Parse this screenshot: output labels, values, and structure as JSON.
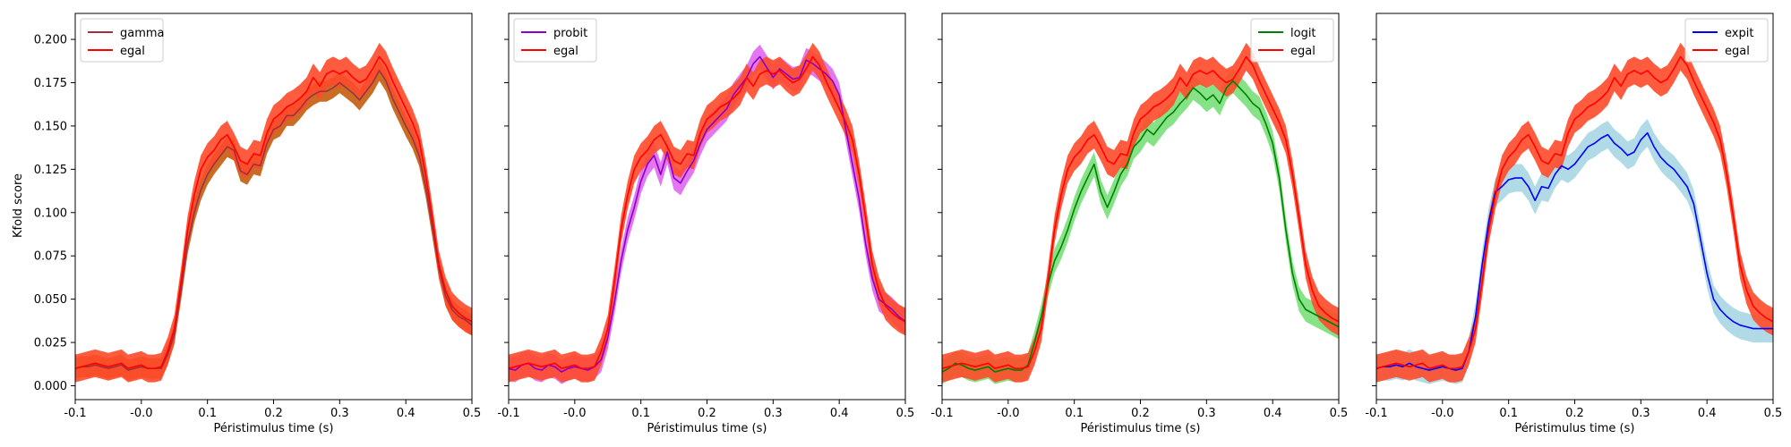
{
  "figure": {
    "ylabel": "Kfold score",
    "xlabel": "Péristimulus time (s)"
  },
  "chart_data": [
    {
      "type": "line",
      "title": "",
      "xlabel": "Péristimulus time (s)",
      "ylabel": "Kfold score",
      "xlim": [
        -0.1,
        0.5
      ],
      "ylim": [
        -0.008,
        0.215
      ],
      "xticks": [
        -0.1,
        0.0,
        0.1,
        0.2,
        0.3,
        0.4,
        0.5
      ],
      "xtick_labels": [
        "-0.1",
        "-0.0",
        "0.1",
        "0.2",
        "0.3",
        "0.4",
        "0.5"
      ],
      "yticks": [
        0.0,
        0.025,
        0.05,
        0.075,
        0.1,
        0.125,
        0.15,
        0.175,
        0.2
      ],
      "ytick_labels": [
        "0.000",
        "0.025",
        "0.050",
        "0.075",
        "0.100",
        "0.125",
        "0.150",
        "0.175",
        "0.200"
      ],
      "grid": false,
      "legend_position": "upper-left",
      "x": [
        -0.1,
        -0.09,
        -0.08,
        -0.07,
        -0.06,
        -0.05,
        -0.04,
        -0.03,
        -0.02,
        -0.01,
        0.0,
        0.01,
        0.02,
        0.03,
        0.04,
        0.05,
        0.06,
        0.07,
        0.08,
        0.09,
        0.1,
        0.11,
        0.12,
        0.13,
        0.14,
        0.15,
        0.16,
        0.17,
        0.18,
        0.19,
        0.2,
        0.21,
        0.22,
        0.23,
        0.24,
        0.25,
        0.26,
        0.27,
        0.28,
        0.29,
        0.3,
        0.31,
        0.32,
        0.33,
        0.34,
        0.35,
        0.36,
        0.37,
        0.38,
        0.39,
        0.4,
        0.41,
        0.42,
        0.43,
        0.44,
        0.45,
        0.46,
        0.47,
        0.48,
        0.49,
        0.5
      ],
      "series": [
        {
          "name": "gamma",
          "color": "#a03040",
          "band_color": "#c86418",
          "band_halfwidth": 0.006,
          "values": [
            0.01,
            0.011,
            0.011,
            0.012,
            0.011,
            0.01,
            0.011,
            0.012,
            0.009,
            0.01,
            0.011,
            0.01,
            0.01,
            0.01,
            0.018,
            0.03,
            0.055,
            0.082,
            0.1,
            0.113,
            0.122,
            0.128,
            0.133,
            0.138,
            0.136,
            0.124,
            0.122,
            0.128,
            0.127,
            0.14,
            0.148,
            0.15,
            0.156,
            0.156,
            0.16,
            0.165,
            0.168,
            0.17,
            0.17,
            0.172,
            0.175,
            0.172,
            0.169,
            0.165,
            0.17,
            0.175,
            0.182,
            0.176,
            0.166,
            0.158,
            0.15,
            0.143,
            0.133,
            0.115,
            0.092,
            0.068,
            0.052,
            0.044,
            0.04,
            0.038,
            0.035
          ]
        },
        {
          "name": "egal",
          "color": "#ff0000",
          "band_color": "#ff4a2a",
          "band_halfwidth": 0.008,
          "values": [
            0.01,
            0.011,
            0.012,
            0.013,
            0.012,
            0.011,
            0.012,
            0.013,
            0.01,
            0.011,
            0.012,
            0.01,
            0.01,
            0.011,
            0.02,
            0.033,
            0.06,
            0.09,
            0.11,
            0.125,
            0.132,
            0.136,
            0.142,
            0.145,
            0.138,
            0.13,
            0.128,
            0.134,
            0.133,
            0.146,
            0.154,
            0.157,
            0.161,
            0.163,
            0.166,
            0.17,
            0.178,
            0.173,
            0.18,
            0.182,
            0.18,
            0.182,
            0.178,
            0.175,
            0.177,
            0.183,
            0.19,
            0.185,
            0.176,
            0.168,
            0.16,
            0.152,
            0.142,
            0.122,
            0.097,
            0.07,
            0.055,
            0.046,
            0.042,
            0.039,
            0.037
          ]
        }
      ]
    },
    {
      "type": "line",
      "title": "",
      "xlabel": "Péristimulus time (s)",
      "ylabel": "",
      "xlim": [
        -0.1,
        0.5
      ],
      "ylim": [
        -0.008,
        0.215
      ],
      "xticks": [
        -0.1,
        0.0,
        0.1,
        0.2,
        0.3,
        0.4,
        0.5
      ],
      "xtick_labels": [
        "-0.1",
        "-0.0",
        "0.1",
        "0.2",
        "0.3",
        "0.4",
        "0.5"
      ],
      "yticks": [
        0.0,
        0.025,
        0.05,
        0.075,
        0.1,
        0.125,
        0.15,
        0.175,
        0.2
      ],
      "ytick_labels": [],
      "grid": false,
      "legend_position": "upper-left",
      "x": [
        -0.1,
        -0.09,
        -0.08,
        -0.07,
        -0.06,
        -0.05,
        -0.04,
        -0.03,
        -0.02,
        -0.01,
        0.0,
        0.01,
        0.02,
        0.03,
        0.04,
        0.05,
        0.06,
        0.07,
        0.08,
        0.09,
        0.1,
        0.11,
        0.12,
        0.13,
        0.14,
        0.15,
        0.16,
        0.17,
        0.18,
        0.19,
        0.2,
        0.21,
        0.22,
        0.23,
        0.24,
        0.25,
        0.26,
        0.27,
        0.28,
        0.29,
        0.3,
        0.31,
        0.32,
        0.33,
        0.34,
        0.35,
        0.36,
        0.37,
        0.38,
        0.39,
        0.4,
        0.41,
        0.42,
        0.43,
        0.44,
        0.45,
        0.46,
        0.47,
        0.48,
        0.49,
        0.5
      ],
      "series": [
        {
          "name": "probit",
          "color": "#8b00c8",
          "band_color": "#e070f0",
          "band_halfwidth": 0.007,
          "values": [
            0.01,
            0.009,
            0.012,
            0.013,
            0.01,
            0.009,
            0.012,
            0.011,
            0.008,
            0.01,
            0.011,
            0.01,
            0.009,
            0.011,
            0.015,
            0.028,
            0.048,
            0.072,
            0.09,
            0.103,
            0.118,
            0.128,
            0.133,
            0.122,
            0.135,
            0.12,
            0.117,
            0.124,
            0.13,
            0.14,
            0.148,
            0.152,
            0.156,
            0.16,
            0.168,
            0.173,
            0.178,
            0.186,
            0.19,
            0.184,
            0.178,
            0.183,
            0.18,
            0.177,
            0.178,
            0.188,
            0.186,
            0.183,
            0.18,
            0.176,
            0.168,
            0.148,
            0.128,
            0.108,
            0.082,
            0.062,
            0.05,
            0.047,
            0.044,
            0.04,
            0.037
          ]
        },
        {
          "name": "egal",
          "color": "#ff0000",
          "band_color": "#ff4a2a",
          "band_halfwidth": 0.008,
          "values": [
            0.01,
            0.011,
            0.012,
            0.013,
            0.012,
            0.011,
            0.012,
            0.013,
            0.01,
            0.011,
            0.012,
            0.01,
            0.01,
            0.011,
            0.02,
            0.033,
            0.06,
            0.09,
            0.11,
            0.125,
            0.132,
            0.136,
            0.142,
            0.145,
            0.138,
            0.13,
            0.128,
            0.134,
            0.133,
            0.146,
            0.154,
            0.157,
            0.161,
            0.163,
            0.166,
            0.17,
            0.178,
            0.173,
            0.18,
            0.182,
            0.18,
            0.182,
            0.178,
            0.175,
            0.177,
            0.183,
            0.19,
            0.185,
            0.176,
            0.168,
            0.16,
            0.152,
            0.142,
            0.122,
            0.097,
            0.07,
            0.055,
            0.046,
            0.042,
            0.039,
            0.037
          ]
        }
      ]
    },
    {
      "type": "line",
      "title": "",
      "xlabel": "Péristimulus time (s)",
      "ylabel": "",
      "xlim": [
        -0.1,
        0.5
      ],
      "ylim": [
        -0.008,
        0.215
      ],
      "xticks": [
        -0.1,
        0.0,
        0.1,
        0.2,
        0.3,
        0.4,
        0.5
      ],
      "xtick_labels": [
        "-0.1",
        "-0.0",
        "0.1",
        "0.2",
        "0.3",
        "0.4",
        "0.5"
      ],
      "yticks": [
        0.0,
        0.025,
        0.05,
        0.075,
        0.1,
        0.125,
        0.15,
        0.175,
        0.2
      ],
      "ytick_labels": [],
      "grid": false,
      "legend_position": "upper-right",
      "x": [
        -0.1,
        -0.09,
        -0.08,
        -0.07,
        -0.06,
        -0.05,
        -0.04,
        -0.03,
        -0.02,
        -0.01,
        0.0,
        0.01,
        0.02,
        0.03,
        0.04,
        0.05,
        0.06,
        0.07,
        0.08,
        0.09,
        0.1,
        0.11,
        0.12,
        0.13,
        0.14,
        0.15,
        0.16,
        0.17,
        0.18,
        0.19,
        0.2,
        0.21,
        0.22,
        0.23,
        0.24,
        0.25,
        0.26,
        0.27,
        0.28,
        0.29,
        0.3,
        0.31,
        0.32,
        0.33,
        0.34,
        0.35,
        0.36,
        0.37,
        0.38,
        0.39,
        0.4,
        0.41,
        0.42,
        0.43,
        0.44,
        0.45,
        0.46,
        0.47,
        0.48,
        0.49,
        0.5
      ],
      "series": [
        {
          "name": "logit",
          "color": "#008000",
          "band_color": "#80e080",
          "band_halfwidth": 0.007,
          "values": [
            0.008,
            0.01,
            0.013,
            0.012,
            0.01,
            0.009,
            0.01,
            0.011,
            0.008,
            0.009,
            0.01,
            0.009,
            0.009,
            0.012,
            0.025,
            0.04,
            0.058,
            0.072,
            0.08,
            0.09,
            0.102,
            0.112,
            0.12,
            0.128,
            0.112,
            0.103,
            0.112,
            0.122,
            0.128,
            0.138,
            0.142,
            0.148,
            0.145,
            0.15,
            0.155,
            0.158,
            0.163,
            0.167,
            0.172,
            0.169,
            0.165,
            0.168,
            0.163,
            0.172,
            0.176,
            0.172,
            0.168,
            0.163,
            0.16,
            0.151,
            0.14,
            0.12,
            0.09,
            0.065,
            0.05,
            0.044,
            0.042,
            0.04,
            0.038,
            0.036,
            0.034
          ]
        },
        {
          "name": "egal",
          "color": "#ff0000",
          "band_color": "#ff4a2a",
          "band_halfwidth": 0.008,
          "values": [
            0.01,
            0.011,
            0.012,
            0.013,
            0.012,
            0.011,
            0.012,
            0.013,
            0.01,
            0.011,
            0.012,
            0.01,
            0.01,
            0.011,
            0.02,
            0.033,
            0.06,
            0.09,
            0.11,
            0.125,
            0.132,
            0.136,
            0.142,
            0.145,
            0.138,
            0.13,
            0.128,
            0.134,
            0.133,
            0.146,
            0.154,
            0.157,
            0.161,
            0.163,
            0.166,
            0.17,
            0.178,
            0.173,
            0.18,
            0.182,
            0.18,
            0.182,
            0.178,
            0.175,
            0.177,
            0.183,
            0.19,
            0.185,
            0.176,
            0.168,
            0.16,
            0.152,
            0.142,
            0.122,
            0.097,
            0.07,
            0.055,
            0.046,
            0.042,
            0.039,
            0.037
          ]
        }
      ]
    },
    {
      "type": "line",
      "title": "",
      "xlabel": "Péristimulus time (s)",
      "ylabel": "",
      "xlim": [
        -0.1,
        0.5
      ],
      "ylim": [
        -0.008,
        0.215
      ],
      "xticks": [
        -0.1,
        0.0,
        0.1,
        0.2,
        0.3,
        0.4,
        0.5
      ],
      "xtick_labels": [
        "-0.1",
        "-0.0",
        "0.1",
        "0.2",
        "0.3",
        "0.4",
        "0.5"
      ],
      "yticks": [
        0.0,
        0.025,
        0.05,
        0.075,
        0.1,
        0.125,
        0.15,
        0.175,
        0.2
      ],
      "ytick_labels": [],
      "grid": false,
      "legend_position": "upper-right",
      "x": [
        -0.1,
        -0.09,
        -0.08,
        -0.07,
        -0.06,
        -0.05,
        -0.04,
        -0.03,
        -0.02,
        -0.01,
        0.0,
        0.01,
        0.02,
        0.03,
        0.04,
        0.05,
        0.06,
        0.07,
        0.08,
        0.09,
        0.1,
        0.11,
        0.12,
        0.13,
        0.14,
        0.15,
        0.16,
        0.17,
        0.18,
        0.19,
        0.2,
        0.21,
        0.22,
        0.23,
        0.24,
        0.25,
        0.26,
        0.27,
        0.28,
        0.29,
        0.3,
        0.31,
        0.32,
        0.33,
        0.34,
        0.35,
        0.36,
        0.37,
        0.38,
        0.39,
        0.4,
        0.41,
        0.42,
        0.43,
        0.44,
        0.45,
        0.46,
        0.47,
        0.48,
        0.49,
        0.5
      ],
      "series": [
        {
          "name": "expit",
          "color": "#0000ff",
          "band_color": "#add8e6",
          "band_halfwidth": 0.008,
          "values": [
            0.01,
            0.011,
            0.011,
            0.012,
            0.011,
            0.013,
            0.011,
            0.01,
            0.009,
            0.01,
            0.011,
            0.01,
            0.009,
            0.01,
            0.02,
            0.04,
            0.07,
            0.095,
            0.112,
            0.115,
            0.119,
            0.12,
            0.12,
            0.115,
            0.107,
            0.115,
            0.114,
            0.122,
            0.127,
            0.125,
            0.128,
            0.133,
            0.138,
            0.14,
            0.143,
            0.145,
            0.14,
            0.137,
            0.133,
            0.135,
            0.142,
            0.146,
            0.138,
            0.132,
            0.128,
            0.125,
            0.12,
            0.115,
            0.105,
            0.085,
            0.065,
            0.05,
            0.044,
            0.04,
            0.037,
            0.035,
            0.034,
            0.033,
            0.033,
            0.033,
            0.033
          ]
        },
        {
          "name": "egal",
          "color": "#ff0000",
          "band_color": "#ff4a2a",
          "band_halfwidth": 0.008,
          "values": [
            0.01,
            0.011,
            0.012,
            0.013,
            0.012,
            0.011,
            0.012,
            0.013,
            0.01,
            0.011,
            0.012,
            0.01,
            0.01,
            0.011,
            0.02,
            0.033,
            0.06,
            0.09,
            0.11,
            0.125,
            0.132,
            0.136,
            0.142,
            0.145,
            0.138,
            0.13,
            0.128,
            0.134,
            0.133,
            0.146,
            0.154,
            0.157,
            0.161,
            0.163,
            0.166,
            0.17,
            0.178,
            0.173,
            0.18,
            0.182,
            0.18,
            0.182,
            0.178,
            0.175,
            0.177,
            0.183,
            0.19,
            0.185,
            0.176,
            0.168,
            0.16,
            0.152,
            0.142,
            0.122,
            0.097,
            0.07,
            0.055,
            0.046,
            0.042,
            0.039,
            0.037
          ]
        }
      ]
    }
  ]
}
